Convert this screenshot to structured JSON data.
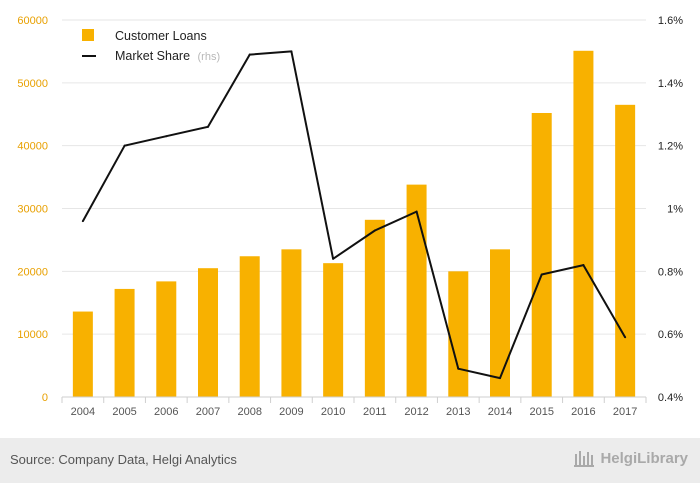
{
  "chart_data": {
    "type": "bar",
    "categories": [
      "2004",
      "2005",
      "2006",
      "2007",
      "2008",
      "2009",
      "2010",
      "2011",
      "2012",
      "2013",
      "2014",
      "2015",
      "2016",
      "2017"
    ],
    "series": [
      {
        "name": "Customer Loans",
        "type": "bar",
        "axis": "left",
        "color": "#f8b100",
        "values": [
          13600,
          17200,
          18400,
          20500,
          22400,
          23500,
          21300,
          28200,
          33800,
          20000,
          23500,
          45200,
          55100,
          46500
        ]
      },
      {
        "name": "Market Share",
        "legend_suffix": "(rhs)",
        "type": "line",
        "axis": "right",
        "color": "#111111",
        "values": [
          0.96,
          1.2,
          1.23,
          1.26,
          1.49,
          1.5,
          0.84,
          0.93,
          0.99,
          0.49,
          0.46,
          0.79,
          0.82,
          0.59
        ]
      }
    ],
    "y_left": {
      "ticks": [
        "0",
        "10000",
        "20000",
        "30000",
        "40000",
        "50000",
        "60000"
      ],
      "ylim": [
        0,
        60000
      ]
    },
    "y_right": {
      "ticks": [
        "0.4%",
        "0.6%",
        "0.8%",
        "1%",
        "1.2%",
        "1.4%",
        "1.6%"
      ],
      "ylim": [
        0.4,
        1.6
      ]
    },
    "grid": "horizontal",
    "legend_position": "top-left",
    "colors": {
      "bar": "#f8b100",
      "line": "#111111",
      "left_axis_text": "#e8a000",
      "grid": "#e6e6e6"
    }
  },
  "footer": {
    "source": "Source: Company Data, Helgi Analytics",
    "brand": "HelgiLibrary"
  }
}
